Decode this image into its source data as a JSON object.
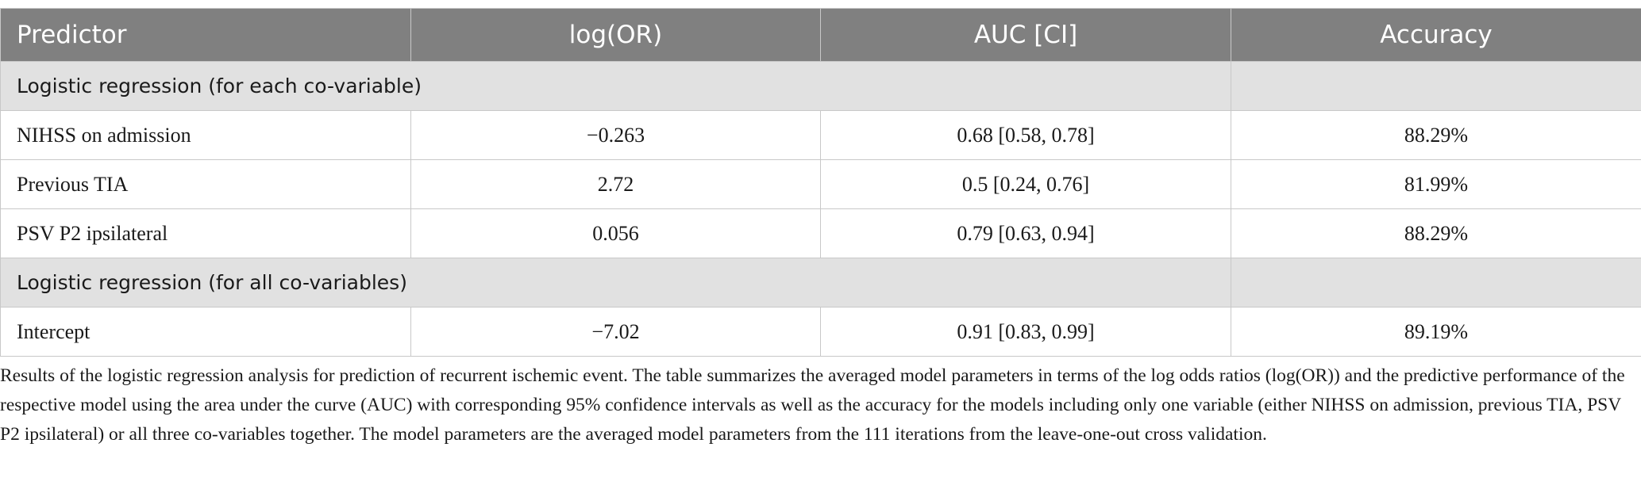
{
  "table": {
    "header": [
      "Predictor",
      "log(OR)",
      "AUC [CI]",
      "Accuracy"
    ],
    "sections": [
      {
        "title": "Logistic regression (for each co-variable)",
        "rows": [
          [
            "NIHSS on admission",
            "−0.263",
            "0.68 [0.58, 0.78]",
            "88.29%"
          ],
          [
            "Previous TIA",
            "2.72",
            "0.5 [0.24, 0.76]",
            "81.99%"
          ],
          [
            "PSV P2 ipsilateral",
            "0.056",
            "0.79 [0.63, 0.94]",
            "88.29%"
          ]
        ]
      },
      {
        "title": "Logistic regression (for all co-variables)",
        "rows": [
          [
            "Intercept",
            "−7.02",
            "0.91 [0.83, 0.99]",
            "89.19%"
          ]
        ]
      }
    ]
  },
  "caption": "Results of the logistic regression analysis for prediction of recurrent ischemic event. The table summarizes the averaged model parameters in terms of the log odds ratios (log(OR)) and the predictive performance of the respective model using the area under the curve (AUC) with corresponding 95% confidence intervals as well as the accuracy for the models including only one variable (either NIHSS on admission, previous TIA, PSV P2 ipsilateral) or all three co-variables together. The model parameters are the averaged model parameters from the 111 iterations from the leave-one-out cross validation."
}
